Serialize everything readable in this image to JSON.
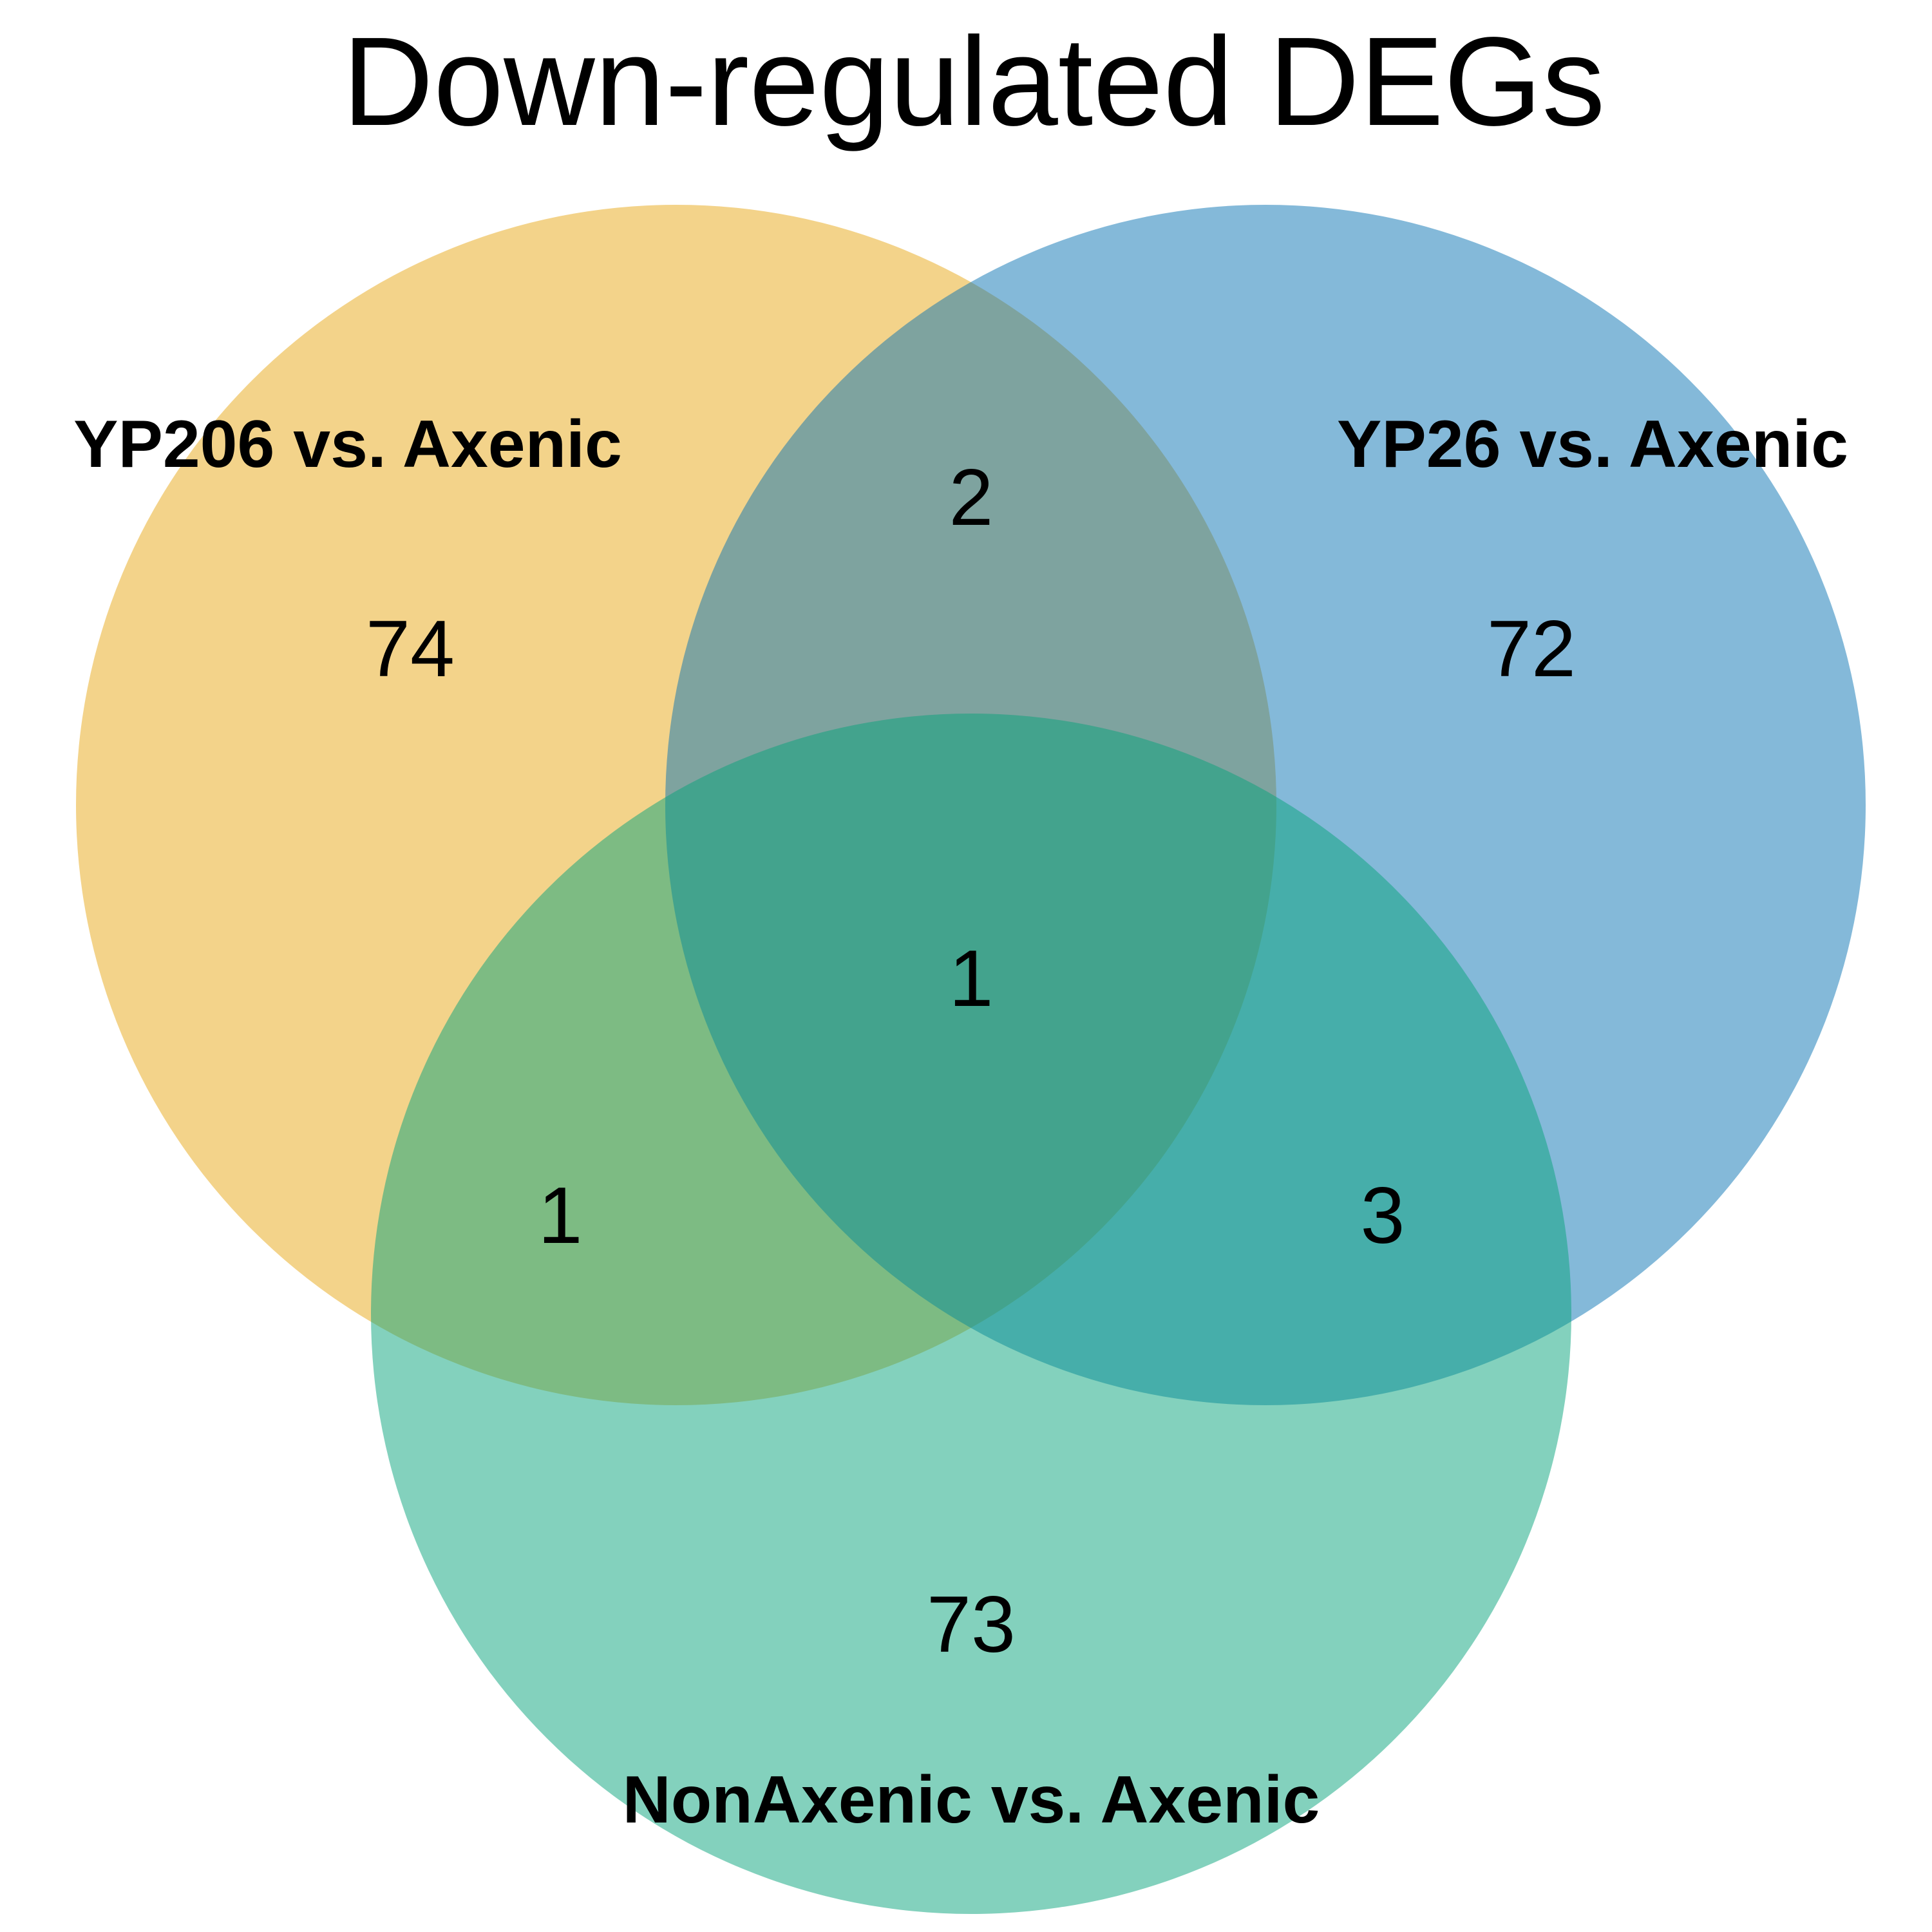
{
  "title": "Down-regulated DEGs",
  "sets": [
    {
      "key": "a",
      "name": "YP206 vs. Axenic",
      "color": "#E9AF29"
    },
    {
      "key": "b",
      "name": "YP26 vs. Axenic",
      "color": "#0A74B4"
    },
    {
      "key": "c",
      "name": "NonAxenic vs. Axenic",
      "color": "#08A37B"
    }
  ],
  "regions": {
    "a_only": "74",
    "b_only": "72",
    "c_only": "73",
    "ab": "2",
    "ac": "1",
    "bc": "3",
    "abc": "1"
  }
}
